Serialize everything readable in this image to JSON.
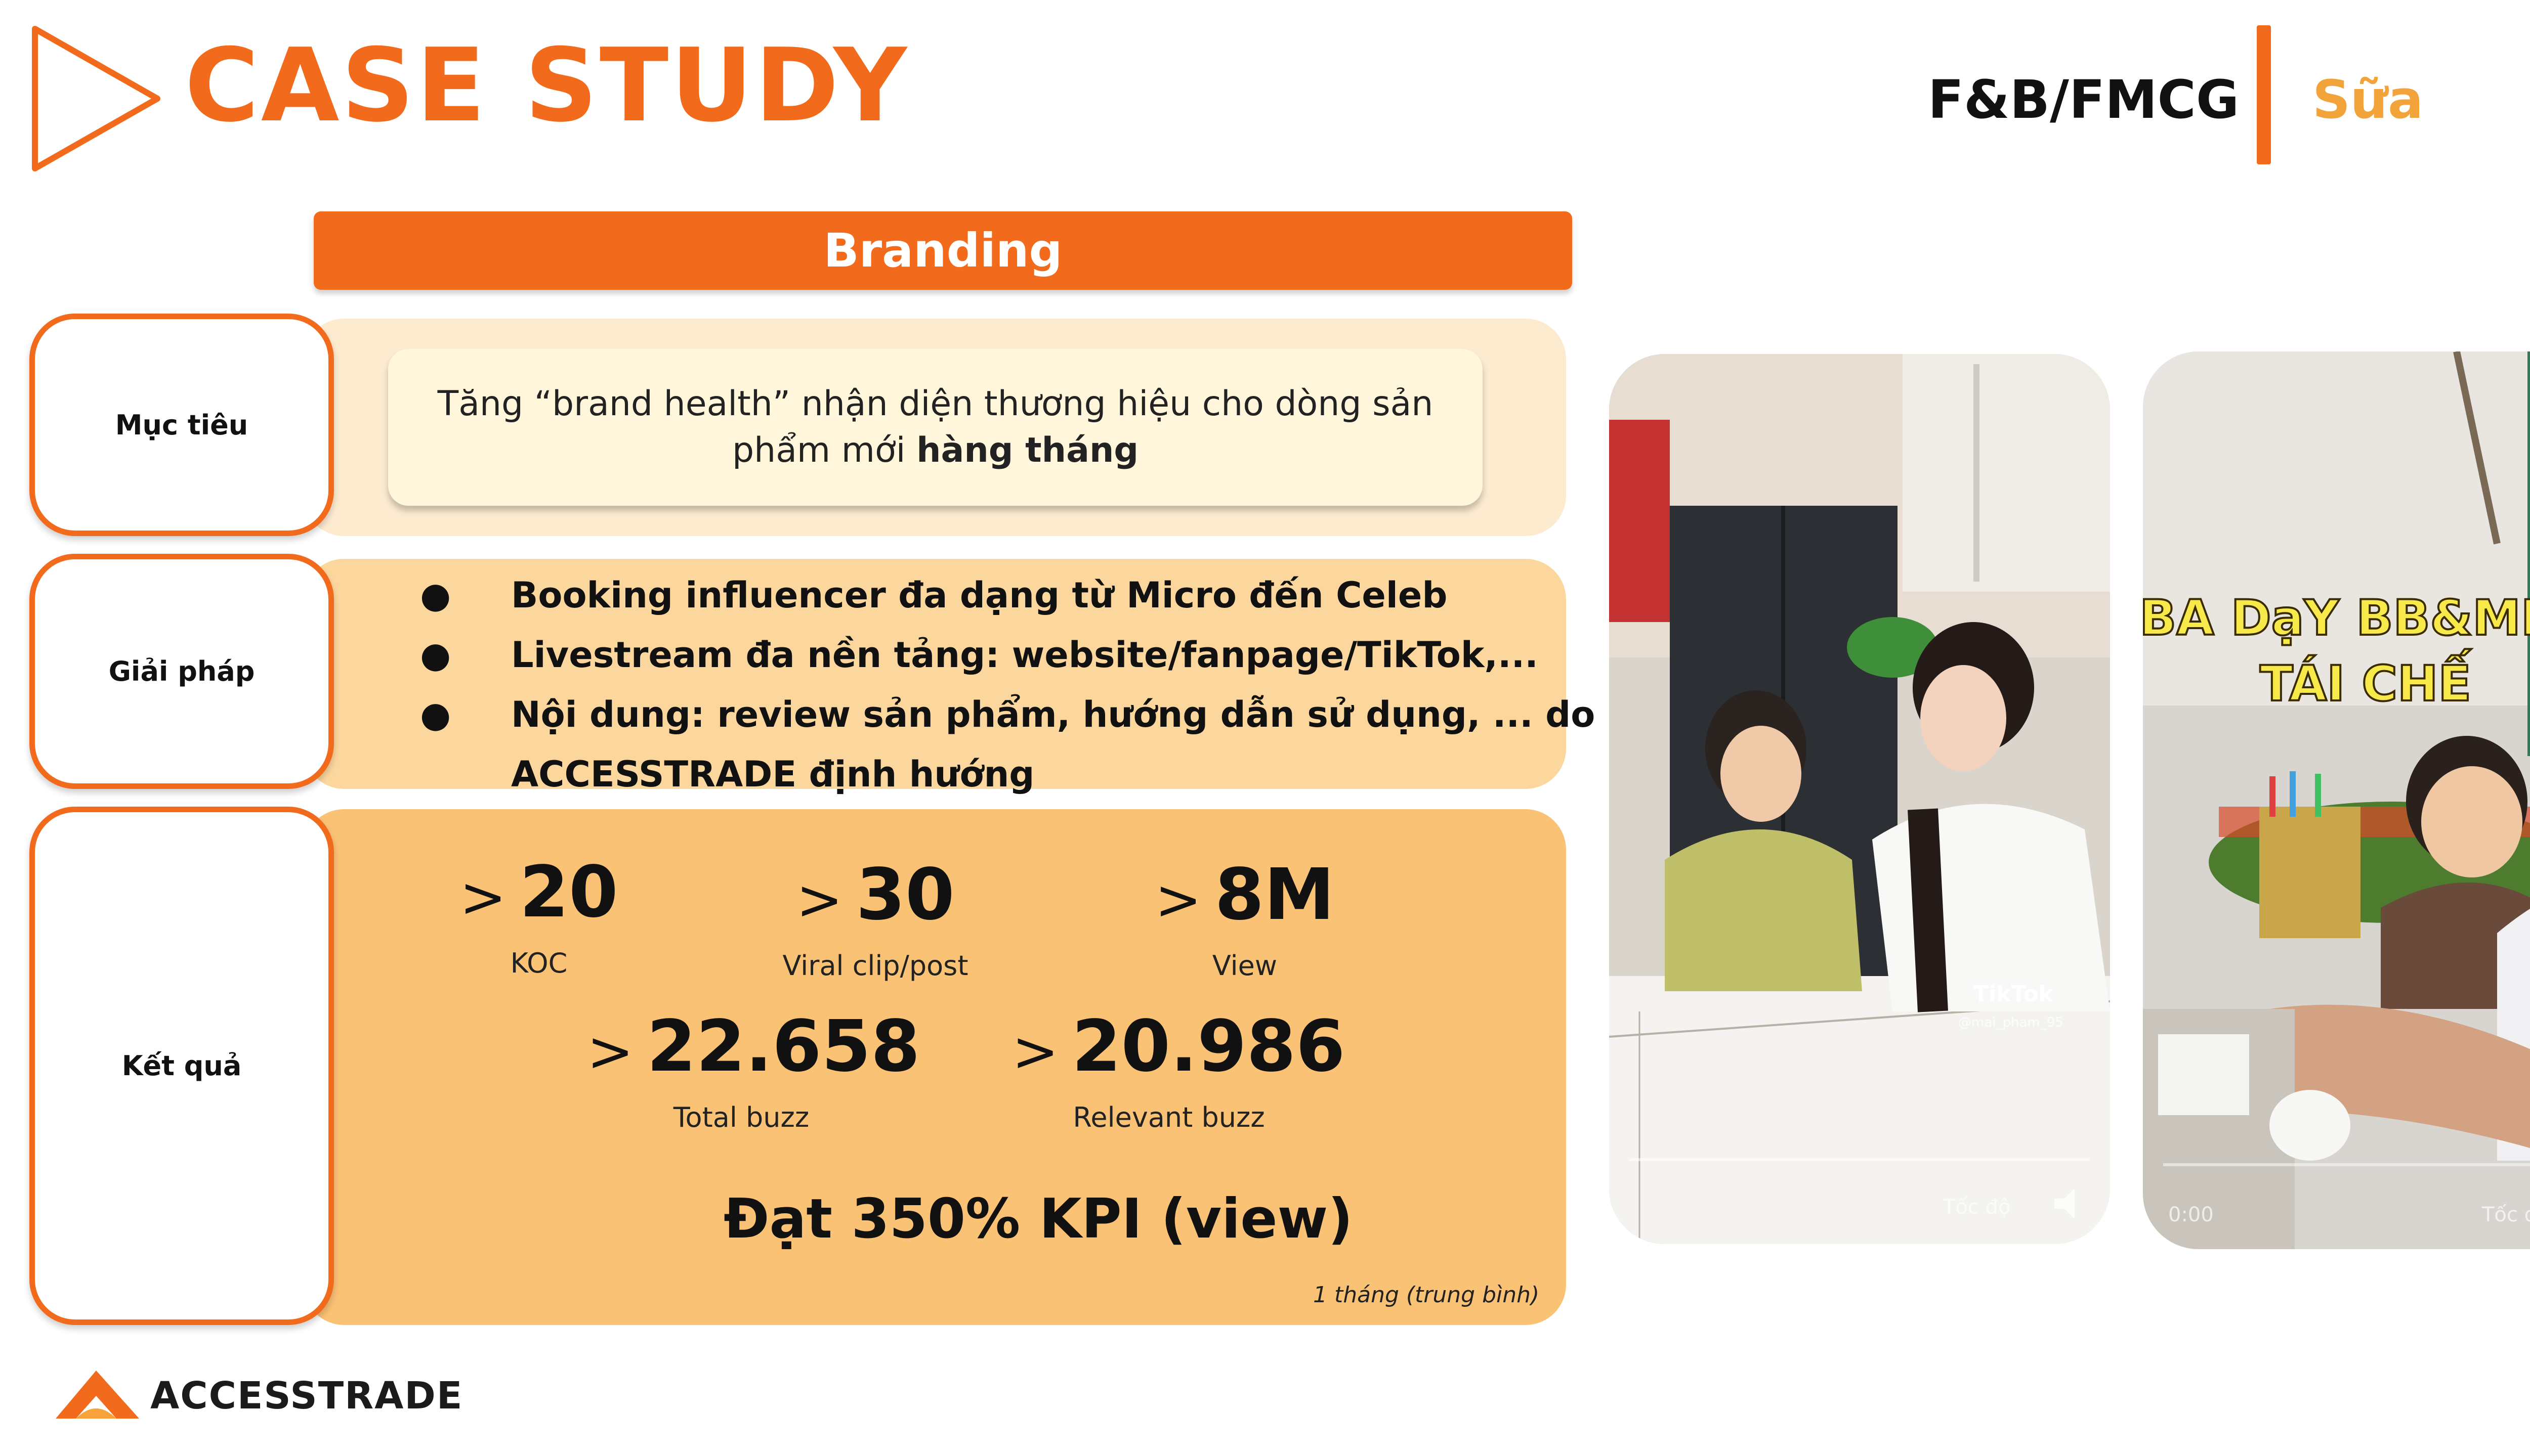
{
  "header": {
    "title": "CASE STUDY",
    "category": "F&B/FMCG",
    "subcategory": "Sữa"
  },
  "section_title": "Branding",
  "labels": {
    "goal": "Mục tiêu",
    "solution": "Giải pháp",
    "result": "Kết quả"
  },
  "goal": {
    "text_before": "Tăng “brand health” nhận diện thương hiệu cho dòng sản",
    "text_line2": "phẩm mới ",
    "text_bold": "hàng tháng"
  },
  "solution": {
    "bullet": "●",
    "items": [
      "Booking influencer đa dạng từ Micro đến Celeb",
      "Livestream đa nền tảng: website/fanpage/TikTok,...",
      "Nội dung: review sản phẩm, hướng dẫn sử dụng, ... do"
    ],
    "continuation": "ACCESSTRADE định hướng"
  },
  "results": {
    "gt": ">",
    "metrics": [
      {
        "value": "20",
        "label": "KOC"
      },
      {
        "value": "30",
        "label": "Viral clip/post"
      },
      {
        "value": "8M",
        "label": "View"
      },
      {
        "value": "22.658",
        "label": "Total buzz"
      },
      {
        "value": "20.986",
        "label": "Relevant buzz"
      }
    ],
    "kpi": "Đạt 350% KPI (view)",
    "footnote": "1 tháng (trung bình)"
  },
  "photos": {
    "photo1": {
      "watermark": "TikTok",
      "handle": "@mai_pham_95",
      "speed_label": "Tốc độ"
    },
    "photo2": {
      "caption_line1": "BA DạY BB&MICKY",
      "caption_line2": "TÁI CHẾ",
      "time": "0:00",
      "speed_label": "Tốc độ"
    }
  },
  "logo": {
    "text": "ACCESSTRADE"
  },
  "colors": {
    "accent": "#F26B1D",
    "accent_light": "#F2A33A",
    "panel_goal": "#FDEBD0",
    "panel_solution": "#FBD79E",
    "panel_result": "#F9C275"
  }
}
